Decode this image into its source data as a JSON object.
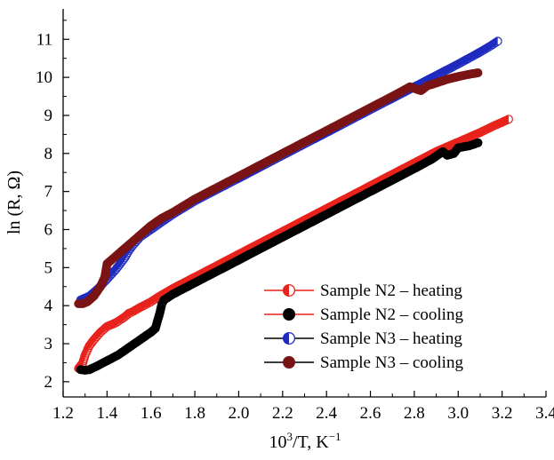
{
  "chart_data": {
    "type": "scatter",
    "xlabel": {
      "prefix": "10",
      "sup": "3",
      "mid": "/T, K",
      "supEnd": "−1"
    },
    "ylabel": "ln (R, Ω)",
    "xlim": [
      1.2,
      3.4
    ],
    "ylim": [
      1.6,
      11.8
    ],
    "xticks": [
      1.2,
      1.4,
      1.6,
      1.8,
      2.0,
      2.2,
      2.4,
      2.6,
      2.8,
      3.0,
      3.2,
      3.4
    ],
    "xtick_labels": [
      "1.2",
      "1.4",
      "1.6",
      "1.8",
      "2.0",
      "2.2",
      "2.4",
      "2.6",
      "2.8",
      "3.0",
      "3.2",
      "3.4"
    ],
    "yticks": [
      2,
      3,
      4,
      5,
      6,
      7,
      8,
      9,
      10,
      11
    ],
    "ytick_labels": [
      "2",
      "3",
      "4",
      "5",
      "6",
      "7",
      "8",
      "9",
      "10",
      "11"
    ],
    "grid": false,
    "legend_position": "bottom-right",
    "series": [
      {
        "name": "Sample N2 – heating",
        "color": "#e8221c",
        "marker": "half-open-circle",
        "line": "#e8221c",
        "x": [
          1.27,
          1.29,
          1.3,
          1.32,
          1.34,
          1.37,
          1.4,
          1.44,
          1.48,
          1.5,
          1.52,
          1.55,
          1.6,
          1.64,
          1.67,
          1.7,
          1.8,
          1.9,
          2.0,
          2.1,
          2.2,
          2.3,
          2.4,
          2.5,
          2.6,
          2.7,
          2.8,
          2.9,
          3.0,
          3.1,
          3.16,
          3.2,
          3.23
        ],
        "y": [
          2.35,
          2.5,
          2.7,
          2.95,
          3.1,
          3.3,
          3.45,
          3.55,
          3.7,
          3.8,
          3.85,
          3.95,
          4.1,
          4.25,
          4.35,
          4.45,
          4.75,
          5.05,
          5.35,
          5.65,
          5.95,
          6.25,
          6.55,
          6.85,
          7.15,
          7.45,
          7.75,
          8.05,
          8.3,
          8.55,
          8.72,
          8.82,
          8.9
        ]
      },
      {
        "name": "Sample N2 – cooling",
        "color": "#000000",
        "marker": "filled-circle",
        "line": "#e8221c",
        "x": [
          1.28,
          1.3,
          1.32,
          1.35,
          1.4,
          1.45,
          1.5,
          1.55,
          1.6,
          1.62,
          1.64,
          1.65,
          1.66,
          1.7,
          1.75,
          1.8,
          1.9,
          2.0,
          2.1,
          2.2,
          2.3,
          2.4,
          2.5,
          2.6,
          2.7,
          2.8,
          2.88,
          2.93,
          2.95,
          2.98,
          3.0,
          3.05,
          3.09
        ],
        "y": [
          2.32,
          2.3,
          2.32,
          2.4,
          2.55,
          2.7,
          2.9,
          3.1,
          3.3,
          3.4,
          3.8,
          4.05,
          4.15,
          4.3,
          4.45,
          4.6,
          4.9,
          5.2,
          5.5,
          5.8,
          6.1,
          6.4,
          6.7,
          7.0,
          7.3,
          7.6,
          7.85,
          8.05,
          7.95,
          8.0,
          8.15,
          8.2,
          8.28
        ]
      },
      {
        "name": "Sample N3 – heating",
        "color": "#1f2bbf",
        "marker": "half-open-circle",
        "line": "#000000",
        "x": [
          1.28,
          1.32,
          1.36,
          1.4,
          1.44,
          1.48,
          1.5,
          1.52,
          1.55,
          1.6,
          1.65,
          1.7,
          1.8,
          1.9,
          2.0,
          2.1,
          2.2,
          2.3,
          2.4,
          2.5,
          2.6,
          2.7,
          2.8,
          2.9,
          3.0,
          3.08,
          3.14,
          3.18
        ],
        "y": [
          4.15,
          4.25,
          4.45,
          4.7,
          4.95,
          5.25,
          5.45,
          5.6,
          5.8,
          6.0,
          6.2,
          6.4,
          6.75,
          7.05,
          7.35,
          7.65,
          7.95,
          8.25,
          8.55,
          8.85,
          9.15,
          9.45,
          9.75,
          10.05,
          10.35,
          10.6,
          10.8,
          10.95
        ]
      },
      {
        "name": "Sample N3 – cooling",
        "color": "#7a1414",
        "marker": "filled-circle",
        "line": "#000000",
        "x": [
          1.27,
          1.29,
          1.31,
          1.34,
          1.37,
          1.39,
          1.4,
          1.42,
          1.45,
          1.5,
          1.55,
          1.6,
          1.65,
          1.7,
          1.8,
          1.9,
          2.0,
          2.1,
          2.2,
          2.3,
          2.4,
          2.5,
          2.6,
          2.7,
          2.78,
          2.83,
          2.86,
          2.9,
          2.95,
          3.0,
          3.05,
          3.09
        ],
        "y": [
          4.05,
          4.05,
          4.1,
          4.25,
          4.5,
          4.75,
          5.1,
          5.2,
          5.35,
          5.6,
          5.85,
          6.1,
          6.3,
          6.45,
          6.8,
          7.1,
          7.4,
          7.7,
          8.0,
          8.3,
          8.6,
          8.9,
          9.2,
          9.5,
          9.75,
          9.65,
          9.78,
          9.85,
          9.95,
          10.02,
          10.08,
          10.12
        ]
      }
    ]
  }
}
